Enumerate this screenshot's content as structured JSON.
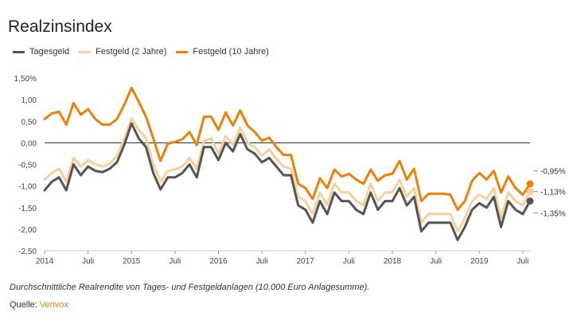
{
  "chart_data": {
    "type": "line",
    "title": "Realzinsindex",
    "xlabel": "",
    "ylabel": "",
    "ylim": [
      -2.5,
      1.5
    ],
    "yticks": [
      -2.5,
      -2.0,
      -1.5,
      -1.0,
      -0.5,
      0.0,
      0.5,
      1.0,
      1.5
    ],
    "ytick_labels": [
      "-2,50",
      "-2,00",
      "-1,50",
      "-1,00",
      "-0,50",
      "0,00",
      "0,50",
      "1,00",
      "1,50%"
    ],
    "xticks": [
      {
        "label": "2014",
        "t": 0
      },
      {
        "label": "Juli",
        "t": 6
      },
      {
        "label": "2015",
        "t": 12
      },
      {
        "label": "Juli",
        "t": 18
      },
      {
        "label": "2016",
        "t": 24
      },
      {
        "label": "Juli",
        "t": 30
      },
      {
        "label": "2017",
        "t": 36
      },
      {
        "label": "Juli",
        "t": 42
      },
      {
        "label": "2018",
        "t": 48
      },
      {
        "label": "Juli",
        "t": 54
      },
      {
        "label": "2019",
        "t": 60
      },
      {
        "label": "Juli",
        "t": 66
      }
    ],
    "series": [
      {
        "name": "Tagesgeld",
        "color": "#555555",
        "end_label": "-1,35%",
        "values": [
          -1.1,
          -0.9,
          -0.8,
          -1.1,
          -0.5,
          -0.75,
          -0.55,
          -0.65,
          -0.68,
          -0.6,
          -0.45,
          -0.05,
          0.45,
          0.1,
          -0.1,
          -0.7,
          -1.08,
          -0.8,
          -0.8,
          -0.7,
          -0.5,
          -0.8,
          -0.1,
          -0.1,
          -0.4,
          0.0,
          -0.2,
          0.2,
          -0.15,
          -0.25,
          -0.45,
          -0.35,
          -0.55,
          -0.75,
          -0.75,
          -1.45,
          -1.55,
          -1.85,
          -1.35,
          -1.65,
          -1.15,
          -1.35,
          -1.35,
          -1.55,
          -1.65,
          -1.15,
          -1.55,
          -1.35,
          -1.35,
          -1.05,
          -1.45,
          -1.25,
          -2.05,
          -1.85,
          -1.85,
          -1.85,
          -1.85,
          -2.25,
          -1.95,
          -1.55,
          -1.4,
          -1.5,
          -1.25,
          -1.95,
          -1.35,
          -1.55,
          -1.65,
          -1.35
        ]
      },
      {
        "name": "Festgeld (2 Jahre)",
        "color": "#f9cf9c",
        "end_label": "-1,13%",
        "values": [
          -0.85,
          -0.7,
          -0.6,
          -0.9,
          -0.35,
          -0.55,
          -0.4,
          -0.5,
          -0.55,
          -0.48,
          -0.3,
          0.1,
          0.57,
          0.3,
          0.1,
          -0.5,
          -0.9,
          -0.65,
          -0.62,
          -0.55,
          -0.35,
          -0.6,
          0.05,
          0.1,
          -0.25,
          0.15,
          -0.05,
          0.35,
          0.0,
          -0.1,
          -0.3,
          -0.15,
          -0.38,
          -0.55,
          -0.6,
          -1.25,
          -1.35,
          -1.65,
          -1.15,
          -1.45,
          -0.95,
          -1.15,
          -1.15,
          -1.35,
          -1.45,
          -0.95,
          -1.35,
          -1.15,
          -1.15,
          -0.85,
          -1.25,
          -1.05,
          -1.85,
          -1.65,
          -1.65,
          -1.65,
          -1.65,
          -2.05,
          -1.75,
          -1.35,
          -1.2,
          -1.3,
          -1.05,
          -1.75,
          -1.15,
          -1.35,
          -1.45,
          -1.13
        ]
      },
      {
        "name": "Festgeld (10 Jahre)",
        "color": "#f07f09",
        "end_label": "-0,95%",
        "values": [
          0.55,
          0.68,
          0.72,
          0.42,
          0.92,
          0.65,
          0.78,
          0.55,
          0.42,
          0.42,
          0.55,
          0.88,
          1.27,
          0.95,
          0.6,
          0.1,
          -0.42,
          -0.02,
          0.02,
          0.08,
          0.25,
          -0.05,
          0.6,
          0.6,
          0.3,
          0.7,
          0.4,
          0.75,
          0.4,
          0.25,
          0.05,
          0.12,
          -0.1,
          -0.28,
          -0.28,
          -0.95,
          -1.05,
          -1.3,
          -0.82,
          -1.05,
          -0.62,
          -0.78,
          -0.72,
          -0.85,
          -0.95,
          -0.62,
          -0.88,
          -0.75,
          -0.72,
          -0.42,
          -0.85,
          -0.6,
          -1.35,
          -1.18,
          -1.18,
          -1.18,
          -1.2,
          -1.55,
          -1.35,
          -0.88,
          -0.7,
          -0.85,
          -0.65,
          -1.15,
          -0.78,
          -1.05,
          -1.2,
          -0.95
        ]
      }
    ]
  },
  "caption": "Durchschnittliche Realrendite von Tages- und Festgeldanlagen (10.000 Euro Anlagesumme).",
  "source_label": "Quelle:",
  "source_name": "Verivox"
}
